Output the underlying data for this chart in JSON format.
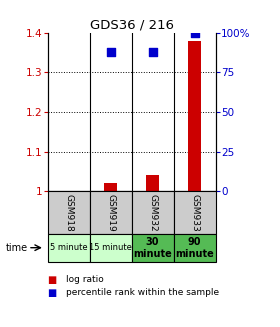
{
  "title": "GDS36 / 216",
  "samples": [
    "GSM918",
    "GSM919",
    "GSM932",
    "GSM933"
  ],
  "time_labels": [
    "5 minute",
    "15 minute",
    "30\nminute",
    "90\nminute"
  ],
  "time_bold": [
    false,
    false,
    true,
    true
  ],
  "log_ratios": [
    1.0,
    1.02,
    1.04,
    1.38
  ],
  "percentile_ranks": [
    null,
    88,
    88,
    100
  ],
  "ylim_left": [
    1.0,
    1.4
  ],
  "ylim_right": [
    0,
    100
  ],
  "yticks_left": [
    1.0,
    1.1,
    1.2,
    1.3,
    1.4
  ],
  "yticks_right": [
    0,
    25,
    50,
    75,
    100
  ],
  "ytick_labels_left": [
    "1",
    "1.1",
    "1.2",
    "1.3",
    "1.4"
  ],
  "ytick_labels_right": [
    "0",
    "25",
    "50",
    "75",
    "100%"
  ],
  "bar_color": "#cc0000",
  "dot_color": "#0000cc",
  "sample_bg_color": "#cccccc",
  "time_bg_light": "#ccffcc",
  "time_bg_bold": "#55bb55",
  "bar_width": 0.3,
  "dot_size": 40,
  "legend_red": "log ratio",
  "legend_blue": "percentile rank within the sample"
}
